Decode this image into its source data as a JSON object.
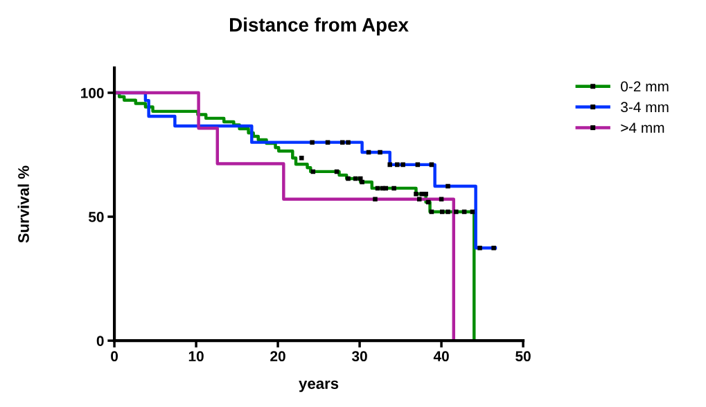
{
  "chart_data": {
    "type": "step",
    "title": "Distance from Apex",
    "xlabel": "years",
    "ylabel": "Survival %",
    "xlim": [
      0,
      50
    ],
    "xticks": [
      0,
      10,
      20,
      30,
      40,
      50
    ],
    "ylim": [
      0,
      110
    ],
    "yticks": [
      0,
      50,
      100
    ],
    "grid": false,
    "legend": "top right",
    "line_style": "solid",
    "series": [
      {
        "name": "0-2 mm",
        "color": "#008c00",
        "x": [
          0,
          0.6,
          1.2,
          2.6,
          3.8,
          4.7,
          10.2,
          11.2,
          13.4,
          14.6,
          15.3,
          16.4,
          17.0,
          17.6,
          18.6,
          19.7,
          20.1,
          21.8,
          22.2,
          23.6,
          24.0,
          27.5,
          28.4,
          30.1,
          31.5,
          36.9,
          38.1,
          38.6,
          44.0
        ],
        "values": [
          100,
          98.4,
          97,
          95.7,
          94.3,
          92.5,
          91.2,
          89.7,
          88.3,
          87,
          85.5,
          83.8,
          82.4,
          81,
          79.6,
          77.9,
          76.5,
          73.7,
          71.2,
          69.8,
          68.2,
          66.8,
          65.4,
          64,
          61.5,
          59.2,
          55.9,
          52,
          0
        ]
      },
      {
        "name": "3-4 mm",
        "color": "#0033ff",
        "x": [
          0,
          3.8,
          4.2,
          7.4,
          16.8,
          30.3,
          33.7,
          39.2,
          44.2,
          46.6
        ],
        "values": [
          100,
          96.9,
          90.5,
          86.6,
          80,
          76,
          71,
          62.3,
          37.4,
          37.4
        ]
      },
      {
        "name": ">4 mm",
        "color": "#b0209e",
        "x": [
          0,
          10.3,
          12.6,
          20.7,
          41.5
        ],
        "values": [
          100,
          85.7,
          71.4,
          57.1,
          0
        ]
      },
      {
        "type": "scatter",
        "color": "#000000",
        "marker": "square",
        "x": [
          22.9,
          24.3,
          27.2,
          28.6,
          29.5,
          30.1,
          30.3,
          32.2,
          32.8,
          33.2,
          34.2,
          36.9,
          37.6,
          38.1,
          38.4,
          38.8,
          40.1,
          40.8,
          41.8,
          42.8,
          43.8
        ],
        "values": [
          73.7,
          68.2,
          68.2,
          65.4,
          65.4,
          65.4,
          64,
          61.5,
          61.5,
          61.5,
          61.5,
          59.2,
          59.2,
          59.2,
          55.9,
          52,
          52,
          52,
          52,
          52,
          52
        ]
      },
      {
        "type": "scatter",
        "color": "#000000",
        "marker": "square",
        "x": [
          24.2,
          26.1,
          27.9,
          28.6,
          31.1,
          32.5,
          33.7,
          34.6,
          35.3,
          37.1,
          38.8,
          40.8,
          44.7,
          46.4
        ],
        "values": [
          80,
          80,
          80,
          80,
          76,
          76,
          71,
          71,
          71,
          71,
          71,
          62.3,
          37.4,
          37.4
        ]
      },
      {
        "type": "scatter",
        "color": "#000000",
        "marker": "square",
        "x": [
          31.9,
          37.3,
          40.0
        ],
        "values": [
          57.1,
          57.1,
          57.1
        ]
      }
    ]
  }
}
